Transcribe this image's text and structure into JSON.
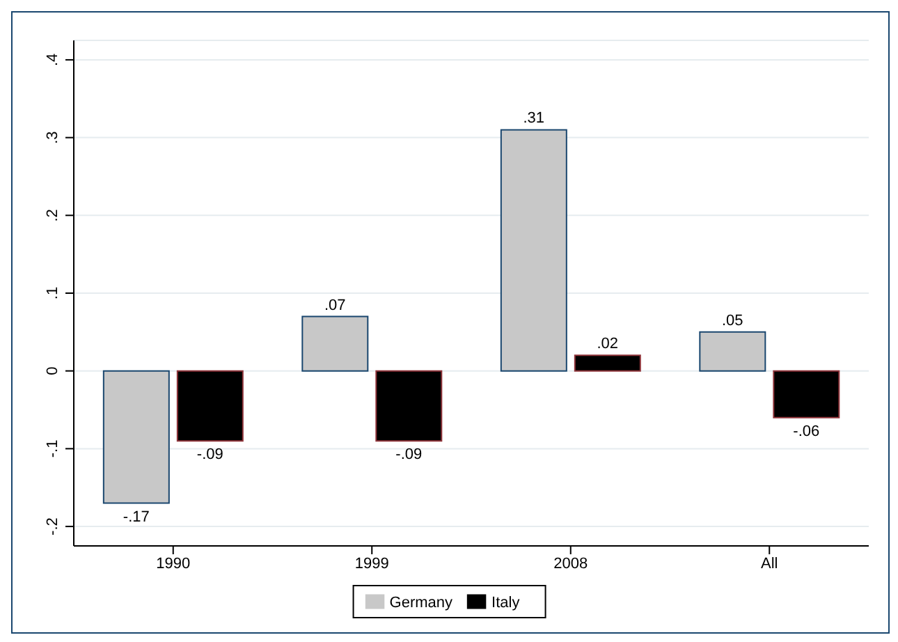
{
  "chart_data": {
    "type": "bar",
    "categories": [
      "1990",
      "1999",
      "2008",
      "All"
    ],
    "series": [
      {
        "name": "Germany",
        "color": "#c8c8c8",
        "values": [
          -0.17,
          0.07,
          0.31,
          0.05
        ],
        "value_labels": [
          "-.17",
          ".07",
          ".31",
          ".05"
        ]
      },
      {
        "name": "Italy",
        "color": "#000000",
        "values": [
          -0.09,
          -0.09,
          0.02,
          -0.06
        ],
        "value_labels": [
          "-.09",
          "-.09",
          ".02",
          "-.06"
        ]
      }
    ],
    "ylim": [
      -0.225,
      0.425
    ],
    "yticks": [
      {
        "value": -0.2,
        "label": "-.2"
      },
      {
        "value": -0.1,
        "label": "-.1"
      },
      0,
      {
        "value": 0.1,
        "label": ".1"
      },
      {
        "value": 0.2,
        "label": ".2"
      },
      {
        "value": 0.3,
        "label": ".3"
      },
      {
        "value": 0.4,
        "label": ".4"
      }
    ],
    "grid": "y",
    "legend": "bottom"
  }
}
